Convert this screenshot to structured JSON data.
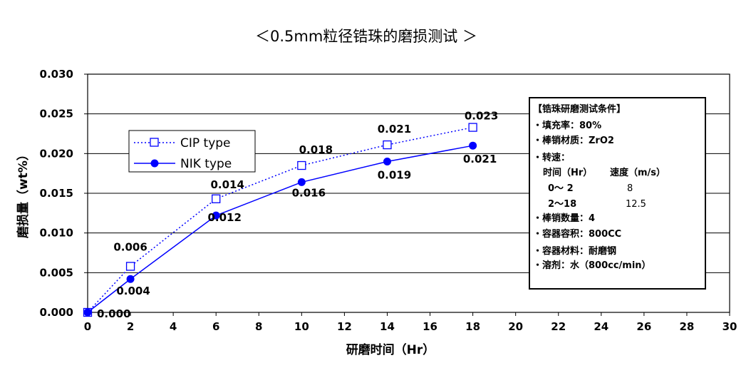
{
  "chart_data": {
    "type": "line",
    "title": "＜0.5mm粒径锆珠的磨损测试 ＞",
    "xlabel": "研磨时间（Hr）",
    "ylabel": "磨损量（wt%）",
    "xlim": [
      0,
      30
    ],
    "ylim": [
      0,
      0.03
    ],
    "x_ticks": [
      0,
      2,
      4,
      6,
      8,
      10,
      12,
      14,
      16,
      18,
      20,
      22,
      24,
      26,
      28,
      30
    ],
    "y_ticks": [
      "0.000",
      "0.005",
      "0.010",
      "0.015",
      "0.020",
      "0.025",
      "0.030"
    ],
    "grid": "horizontal",
    "legend": "left",
    "series": [
      {
        "name": "CIP type",
        "color": "#0000ff",
        "line": "dotted",
        "marker": "open-square",
        "x": [
          0,
          2,
          6,
          10,
          14,
          18
        ],
        "y": [
          0.0,
          0.0058,
          0.0143,
          0.0185,
          0.0211,
          0.0233
        ],
        "labels": [
          "",
          "0.006",
          "0.014",
          "0.018",
          "0.021",
          "0.023"
        ]
      },
      {
        "name": "NIK type",
        "color": "#0000ff",
        "line": "solid",
        "marker": "filled-circle",
        "x": [
          0,
          2,
          6,
          10,
          14,
          18
        ],
        "y": [
          0.0,
          0.0042,
          0.0122,
          0.0164,
          0.019,
          0.021
        ],
        "labels": [
          "0.000",
          "0.004",
          "0.012",
          "0.016",
          "0.019",
          "0.021"
        ]
      }
    ]
  },
  "conditions": {
    "heading": "【锆珠研磨测试条件】",
    "fill_rate": "・填充率：80%",
    "pin_material": "・棒销材质：ZrO2",
    "speed_label": "・转速：",
    "speed_header_time": "时间（Hr）",
    "speed_header_speed": "速度（m/s）",
    "speed_row1_time": "0～ 2",
    "speed_row1_speed": "8",
    "speed_row2_time": "2～18",
    "speed_row2_speed": "12.5",
    "pin_count": "・棒销数量：4",
    "volume": "・容器容积：800CC",
    "container_material": "・容器材料：耐磨钢",
    "solvent": "・溶剂：水（800cc/min）"
  }
}
